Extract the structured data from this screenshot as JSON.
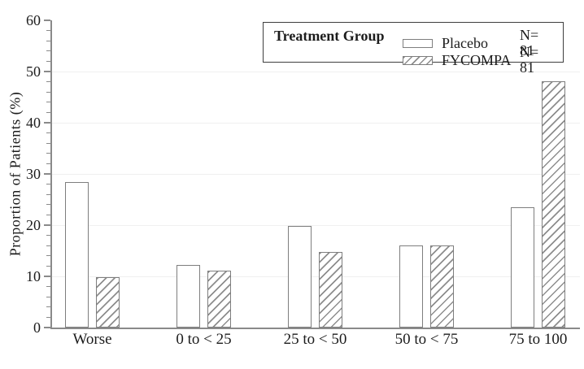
{
  "chart_data": {
    "type": "bar",
    "title": "",
    "categories": [
      "Worse",
      "0 to < 25",
      "25 to < 50",
      "50 to < 75",
      "75 to 100"
    ],
    "series": [
      {
        "name": "Placebo",
        "n_label": "N= 81",
        "swatch": "empty",
        "values": [
          28.4,
          12.3,
          19.8,
          16.0,
          23.5
        ]
      },
      {
        "name": "FYCOMPA",
        "n_label": "N= 81",
        "swatch": "hatched",
        "values": [
          9.9,
          11.1,
          14.8,
          16.0,
          48.1
        ]
      }
    ],
    "xlabel": "",
    "ylabel": "Proportion of Patients (%)",
    "ylim": [
      0,
      60
    ],
    "yticks": [
      0,
      10,
      20,
      30,
      40,
      50,
      60
    ],
    "ytick_interval": 10,
    "yminor_interval": 2,
    "grid": "horizontal-major",
    "legend_position": "top-right"
  },
  "legend": {
    "title": "Treatment Group",
    "entries": [
      {
        "label": "Placebo",
        "count": "N= 81",
        "swatch": "empty"
      },
      {
        "label": "FYCOMPA",
        "count": "N= 81",
        "swatch": "hatched"
      }
    ]
  },
  "colors": {
    "background": "#ffffff",
    "bar_fill": "#ffffff",
    "bar_outline": "#7e7e7e",
    "hatch_line": "#8d8d8d",
    "axis": "#8a8a8a",
    "gridline": "#f0f0f0",
    "text": "#1c1c1c",
    "legend_border": "#3e3e3e"
  }
}
